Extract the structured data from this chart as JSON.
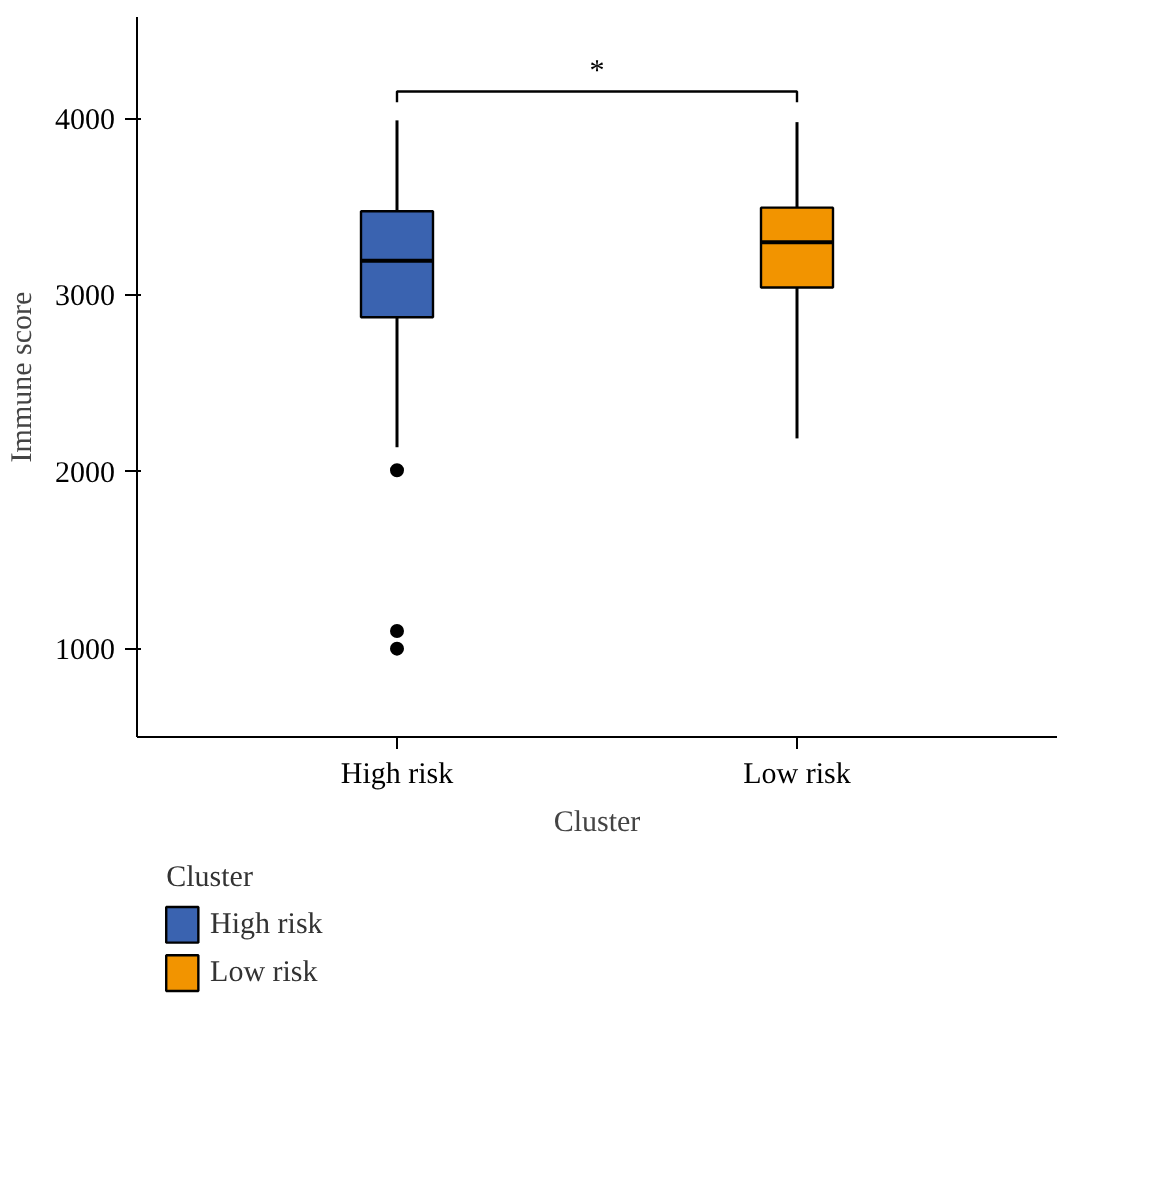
{
  "chart_data": {
    "type": "box",
    "xlabel": "Cluster",
    "ylabel": "Immune score",
    "legend_title": "Cluster",
    "categories": [
      "High risk",
      "Low risk"
    ],
    "series": [
      {
        "name": "High risk",
        "color": "#3a63b0",
        "boxes": [
          {
            "low": 2140,
            "q1": 2876,
            "median": 3195,
            "q3": 3476,
            "high": 3990,
            "outliers": [
              2010,
              1100,
              1000
            ]
          },
          null
        ]
      },
      {
        "name": "Low risk",
        "color": "#f29400",
        "boxes": [
          null,
          {
            "low": 2190,
            "q1": 3044,
            "median": 3300,
            "q3": 3496,
            "high": 3980
          }
        ]
      }
    ],
    "ylim": [
      500,
      4575
    ],
    "yticks": [
      1000,
      2000,
      3000,
      4000
    ],
    "grid": false,
    "legend": "bottom left",
    "annotations": [
      "*"
    ]
  }
}
